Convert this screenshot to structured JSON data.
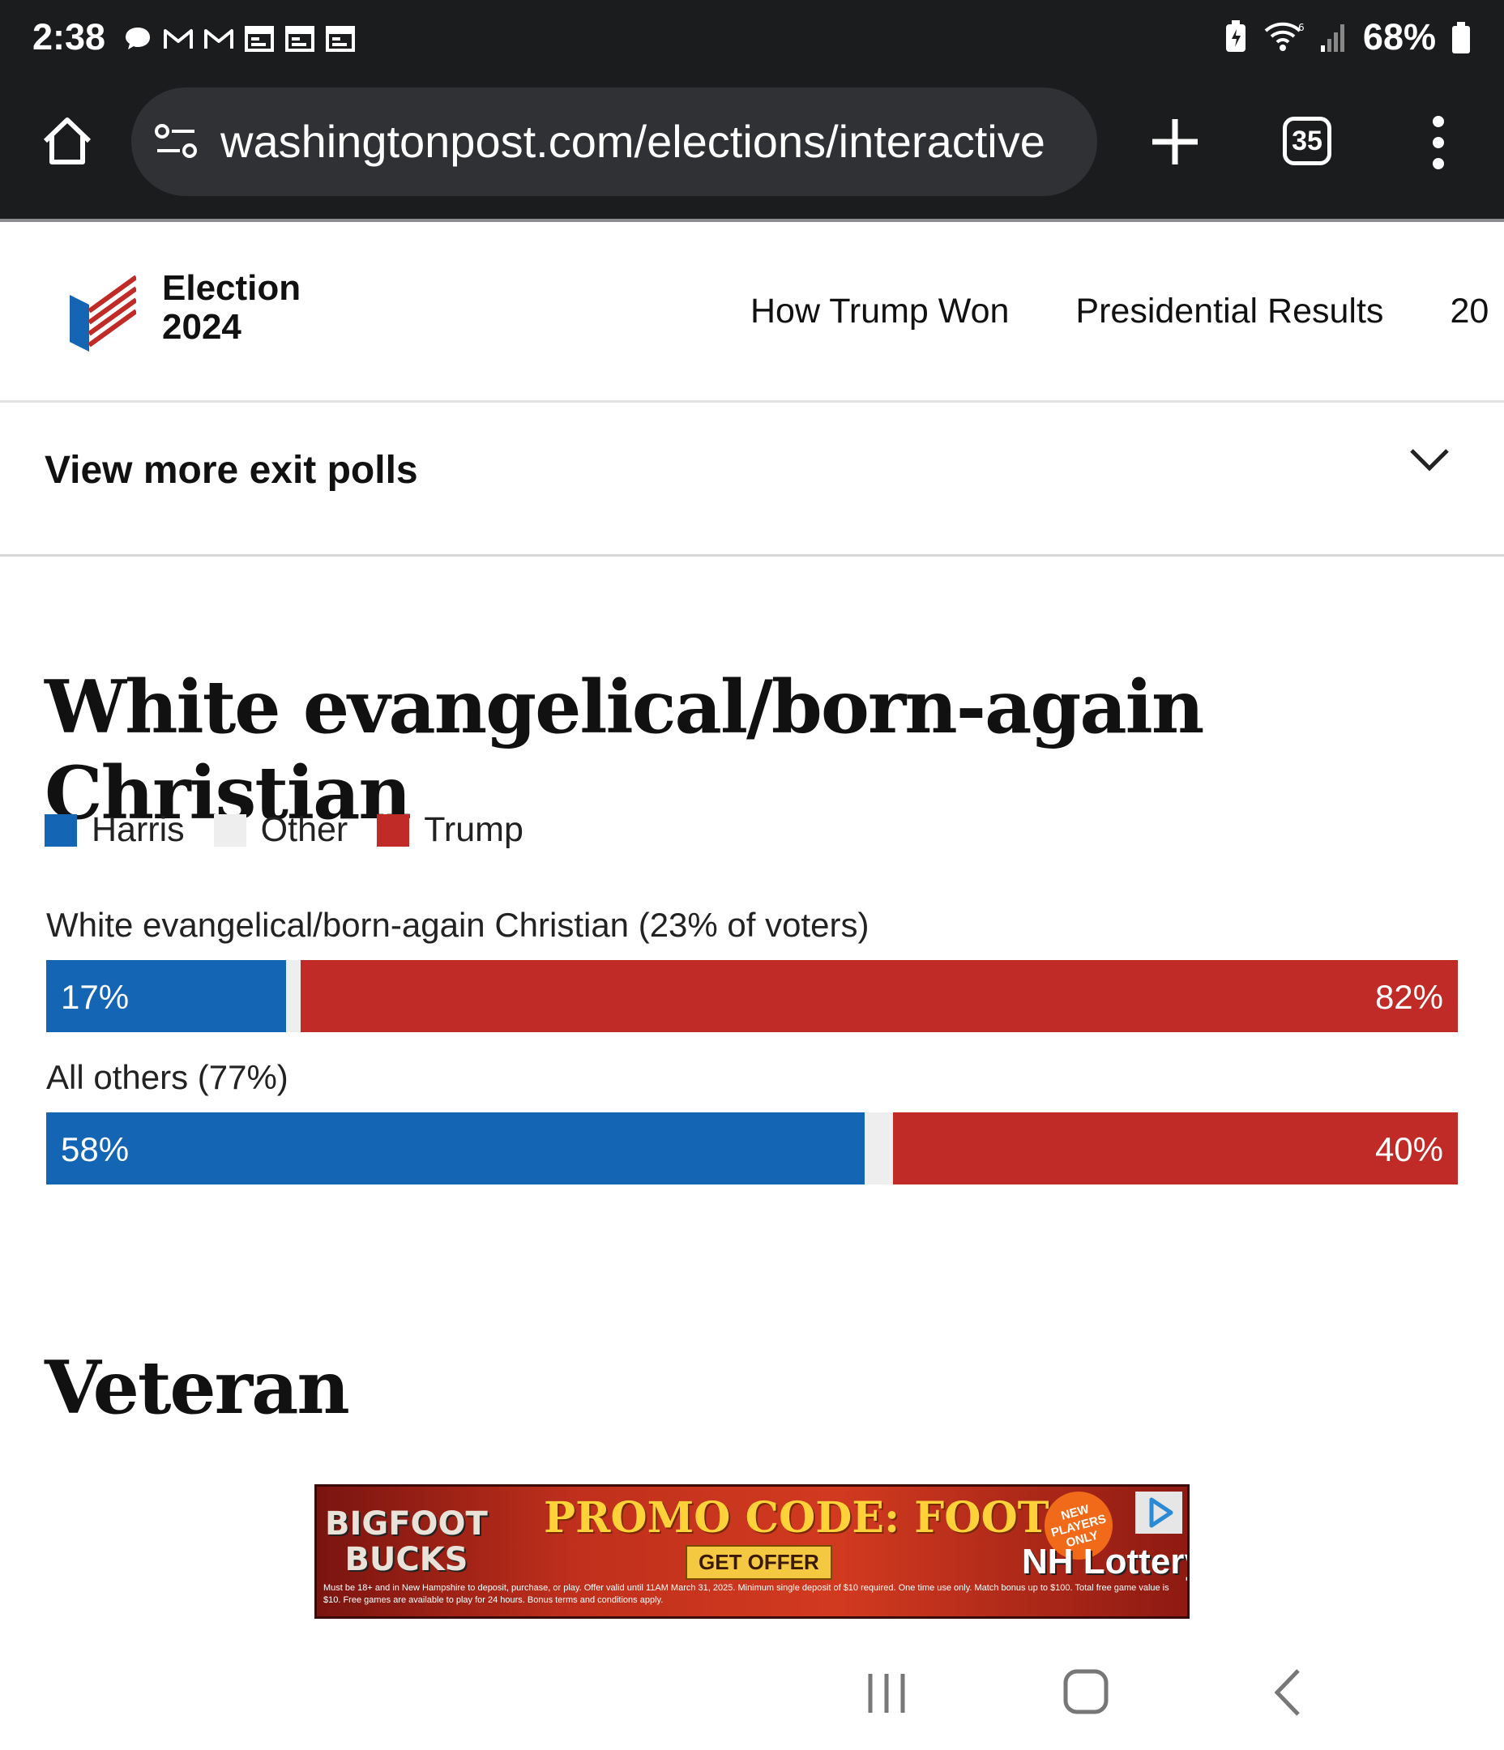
{
  "status_bar": {
    "time": "2:38",
    "battery": "68%",
    "notification_icons": [
      "chat-icon",
      "gmail-icon",
      "gmail-icon",
      "calendar-icon",
      "calendar-icon",
      "calendar-icon"
    ]
  },
  "browser": {
    "url": "washingtonpost.com/elections/interactive",
    "tab_count": "35"
  },
  "site_header": {
    "logo_line1": "Election",
    "logo_line2": "2024",
    "nav": [
      "How Trump Won",
      "Presidential Results",
      "20"
    ]
  },
  "view_more": {
    "label": "View more exit polls"
  },
  "poll": {
    "title": "White evangelical/born-again Christian",
    "legend": [
      {
        "label": "Harris",
        "color": "#1565b5"
      },
      {
        "label": "Other",
        "color": "#eeeeee"
      },
      {
        "label": "Trump",
        "color": "#c02b27"
      }
    ],
    "rows": [
      {
        "label": "White evangelical/born-again Christian (23% of voters)",
        "harris": 17,
        "other": 1,
        "trump": 82,
        "harris_label": "17%",
        "trump_label": "82%"
      },
      {
        "label": "All others (77%)",
        "harris": 58,
        "other": 2,
        "trump": 40,
        "harris_label": "58%",
        "trump_label": "40%"
      }
    ]
  },
  "next_section": {
    "title": "Veteran"
  },
  "ad": {
    "brand_line1": "BIGFOOT",
    "brand_line2": "BUCKS",
    "promo": "PROMO CODE: FOOT",
    "cta": "GET OFFER",
    "badge": "NEW PLAYERS ONLY",
    "advertiser": "NH Lottery",
    "fine_print": "Must be 18+ and in New Hampshire to deposit, purchase, or play. Offer valid until 11AM March 31, 2025. Minimum single deposit of $10 required. One time use only. Match bonus up to $100. Total free game value is $10. Free games are available to play for 24 hours. Bonus terms and conditions apply."
  }
}
